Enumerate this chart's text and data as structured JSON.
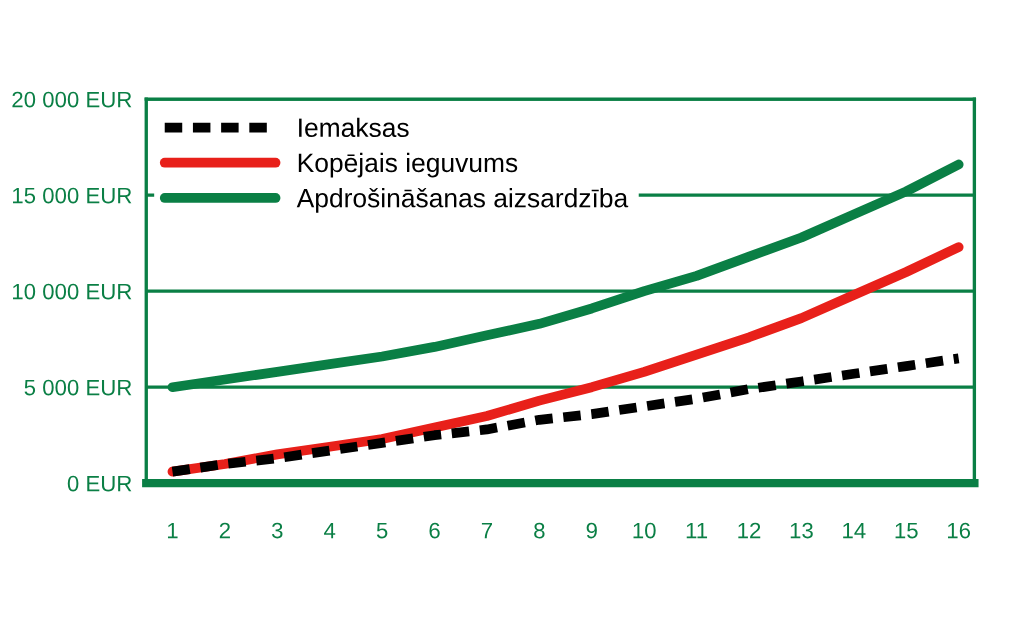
{
  "chart_data": {
    "type": "line",
    "x": [
      1,
      2,
      3,
      4,
      5,
      6,
      7,
      8,
      9,
      10,
      11,
      12,
      13,
      14,
      15,
      16
    ],
    "series": [
      {
        "name": "Iemaksas",
        "color": "#000000",
        "line_style": "dashed",
        "values": [
          600,
          1000,
          1300,
          1700,
          2100,
          2500,
          2800,
          3300,
          3600,
          4000,
          4400,
          4900,
          5300,
          5700,
          6100,
          6500
        ]
      },
      {
        "name": "Kopējais ieguvums",
        "color": "#e8201a",
        "line_style": "solid",
        "values": [
          600,
          1000,
          1500,
          1900,
          2300,
          2900,
          3500,
          4300,
          5000,
          5800,
          6700,
          7600,
          8600,
          9800,
          11000,
          12300
        ]
      },
      {
        "name": "Apdrošināšanas aizsardzība",
        "color": "#0a7f45",
        "line_style": "solid",
        "values": [
          5000,
          5400,
          5800,
          6200,
          6600,
          7100,
          7700,
          8300,
          9100,
          10000,
          10800,
          11800,
          12800,
          14000,
          15200,
          16600
        ]
      }
    ],
    "xlim": [
      0.5,
      16.3
    ],
    "xticks": [
      1,
      2,
      3,
      4,
      5,
      6,
      7,
      8,
      9,
      10,
      11,
      12,
      13,
      14,
      15,
      16
    ],
    "ylim": [
      0,
      20000
    ],
    "yticks": [
      {
        "value": 0,
        "label": "0 EUR"
      },
      {
        "value": 5000,
        "label": "5 000 EUR"
      },
      {
        "value": 10000,
        "label": "10 000 EUR"
      },
      {
        "value": 15000,
        "label": "15 000 EUR"
      },
      {
        "value": 20000,
        "label": "20 000 EUR"
      }
    ],
    "grid": "y",
    "legend": "top left",
    "marker": "none"
  }
}
